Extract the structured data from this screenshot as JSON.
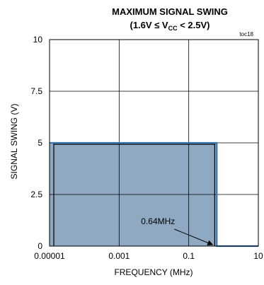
{
  "chart_data": {
    "type": "area",
    "title_line1": "MAXIMUM SIGNAL SWING",
    "title_line2": {
      "prefix": "(1.6V ≤ V",
      "sub": "CC",
      "suffix": " < 2.5V)"
    },
    "tag": "toc18",
    "xlabel": "FREQUENCY (MHz)",
    "ylabel": "SIGNAL SWING (V)",
    "x_scale": "log",
    "xlim": [
      1e-05,
      10
    ],
    "ylim": [
      0,
      10
    ],
    "x_ticks": [
      {
        "value": 1e-05,
        "label": "0.00001"
      },
      {
        "value": 0.001,
        "label": "0.001"
      },
      {
        "value": 0.1,
        "label": "0.1"
      },
      {
        "value": 10,
        "label": "10"
      }
    ],
    "y_ticks": [
      {
        "value": 0,
        "label": "0"
      },
      {
        "value": 2.5,
        "label": "2.5"
      },
      {
        "value": 5,
        "label": "5"
      },
      {
        "value": 7.5,
        "label": "7.5"
      },
      {
        "value": 10,
        "label": "10"
      }
    ],
    "grid": true,
    "series": [
      {
        "x": [
          1e-05,
          0.64,
          0.64,
          10
        ],
        "y": [
          5,
          5,
          0,
          0
        ]
      }
    ],
    "annotations": [
      {
        "text": "0.64MHz",
        "x": 0.64,
        "y": 0
      }
    ],
    "colors": {
      "fill": "#8fa9c2",
      "line": "#3b76b4",
      "grid": "#000000"
    }
  }
}
